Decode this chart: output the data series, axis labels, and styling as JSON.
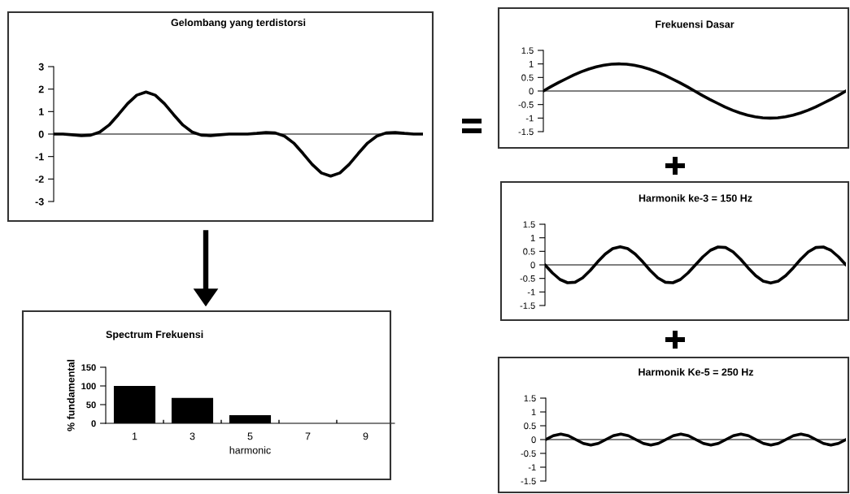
{
  "chart_data": [
    {
      "type": "line",
      "title": "Gelombang yang terdistorsi",
      "categories": [
        null,
        null,
        null,
        null,
        null,
        null,
        null,
        null,
        null,
        null,
        null,
        null,
        null,
        null,
        null,
        null,
        null,
        null,
        null,
        null,
        null,
        null,
        null,
        null,
        null,
        null,
        null,
        null,
        null,
        null,
        null,
        null,
        null,
        null,
        null,
        null,
        null,
        null,
        null,
        null,
        null
      ],
      "series": [
        {
          "color": "#000000",
          "values": [
            0,
            0,
            -0.03,
            -0.07,
            -0.05,
            0.09,
            0.4,
            0.86,
            1.35,
            1.73,
            1.87,
            1.73,
            1.35,
            0.86,
            0.4,
            0.09,
            -0.05,
            -0.07,
            -0.03,
            0,
            0,
            0,
            0.03,
            0.07,
            0.05,
            -0.09,
            -0.4,
            -0.86,
            -1.35,
            -1.73,
            -1.87,
            -1.73,
            -1.35,
            -0.86,
            -0.4,
            -0.09,
            0.05,
            0.07,
            0.03,
            0,
            0
          ]
        }
      ],
      "ylim": [
        -3,
        3
      ],
      "yticks": [
        -3,
        -2,
        -1,
        0,
        1,
        2,
        3
      ],
      "tick_labels": "y",
      "grid": false,
      "legend": false,
      "ref_lines": [
        {
          "axis": "y",
          "value": 0,
          "color": "#555555"
        }
      ]
    },
    {
      "type": "line",
      "title": "Frekuensi Dasar",
      "categories": [
        null,
        null,
        null,
        null,
        null,
        null,
        null,
        null,
        null,
        null,
        null,
        null,
        null,
        null,
        null,
        null,
        null,
        null,
        null,
        null,
        null,
        null,
        null,
        null,
        null,
        null,
        null,
        null,
        null,
        null,
        null,
        null,
        null,
        null,
        null,
        null,
        null,
        null,
        null,
        null,
        null
      ],
      "series": [
        {
          "color": "#000000",
          "values": [
            0,
            0.16,
            0.31,
            0.45,
            0.59,
            0.71,
            0.81,
            0.89,
            0.95,
            0.99,
            1,
            0.99,
            0.95,
            0.89,
            0.81,
            0.71,
            0.59,
            0.45,
            0.31,
            0.16,
            0,
            -0.16,
            -0.31,
            -0.45,
            -0.59,
            -0.71,
            -0.81,
            -0.89,
            -0.95,
            -0.99,
            -1,
            -0.99,
            -0.95,
            -0.89,
            -0.81,
            -0.71,
            -0.59,
            -0.45,
            -0.31,
            -0.16,
            0
          ]
        }
      ],
      "ylim": [
        -1.5,
        1.5
      ],
      "yticks": [
        -1.5,
        -1,
        -0.5,
        0,
        0.5,
        1,
        1.5
      ],
      "tick_labels": "y",
      "grid": false,
      "legend": false,
      "ref_lines": [
        {
          "axis": "y",
          "value": 0,
          "color": "#555555"
        }
      ]
    },
    {
      "type": "line",
      "title": "Harmonik ke-3 = 150 Hz",
      "categories": [
        null,
        null,
        null,
        null,
        null,
        null,
        null,
        null,
        null,
        null,
        null,
        null,
        null,
        null,
        null,
        null,
        null,
        null,
        null,
        null,
        null,
        null,
        null,
        null,
        null,
        null,
        null,
        null,
        null,
        null,
        null,
        null,
        null,
        null,
        null,
        null,
        null,
        null,
        null,
        null,
        null
      ],
      "series": [
        {
          "color": "#000000",
          "values": [
            0,
            -0.3,
            -0.54,
            -0.66,
            -0.64,
            -0.48,
            -0.21,
            0.11,
            0.4,
            0.6,
            0.67,
            0.6,
            0.4,
            0.11,
            -0.21,
            -0.48,
            -0.64,
            -0.66,
            -0.54,
            -0.3,
            0,
            0.3,
            0.54,
            0.66,
            0.64,
            0.48,
            0.21,
            -0.11,
            -0.4,
            -0.6,
            -0.67,
            -0.6,
            -0.4,
            -0.11,
            0.21,
            0.48,
            0.64,
            0.66,
            0.54,
            0.3,
            0
          ]
        }
      ],
      "ylim": [
        -1.5,
        1.5
      ],
      "yticks": [
        -1.5,
        -1,
        -0.5,
        0,
        0.5,
        1,
        1.5
      ],
      "tick_labels": "y",
      "grid": false,
      "legend": false,
      "ref_lines": [
        {
          "axis": "y",
          "value": 0,
          "color": "#555555"
        }
      ]
    },
    {
      "type": "line",
      "title": "Harmonik Ke-5 = 250 Hz",
      "categories": [
        null,
        null,
        null,
        null,
        null,
        null,
        null,
        null,
        null,
        null,
        null,
        null,
        null,
        null,
        null,
        null,
        null,
        null,
        null,
        null,
        null,
        null,
        null,
        null,
        null,
        null,
        null,
        null,
        null,
        null,
        null,
        null,
        null,
        null,
        null,
        null,
        null,
        null,
        null,
        null,
        null
      ],
      "series": [
        {
          "color": "#000000",
          "values": [
            0,
            0.14,
            0.2,
            0.14,
            0,
            -0.14,
            -0.2,
            -0.14,
            0,
            0.14,
            0.2,
            0.14,
            0,
            -0.14,
            -0.2,
            -0.14,
            0,
            0.14,
            0.2,
            0.14,
            0,
            -0.14,
            -0.2,
            -0.14,
            0,
            0.14,
            0.2,
            0.14,
            0,
            -0.14,
            -0.2,
            -0.14,
            0,
            0.14,
            0.2,
            0.14,
            0,
            -0.14,
            -0.2,
            -0.14,
            0
          ]
        }
      ],
      "ylim": [
        -1.5,
        1.5
      ],
      "yticks": [
        -1.5,
        -1,
        -0.5,
        0,
        0.5,
        1,
        1.5
      ],
      "tick_labels": "y",
      "grid": false,
      "legend": false,
      "ref_lines": [
        {
          "axis": "y",
          "value": 0,
          "color": "#555555"
        }
      ]
    },
    {
      "type": "bar",
      "title": "Spectrum Frekuensi",
      "xlabel": "harmonic",
      "ylabel": "% fundamental",
      "categories": [
        "1",
        "3",
        "5",
        "7",
        "9"
      ],
      "series": [
        {
          "color": "#000000",
          "values": [
            100,
            68,
            22,
            0,
            0
          ]
        }
      ],
      "ylim": [
        0,
        150
      ],
      "yticks": [
        0,
        50,
        100,
        150
      ],
      "grid": false,
      "legend": false
    }
  ]
}
